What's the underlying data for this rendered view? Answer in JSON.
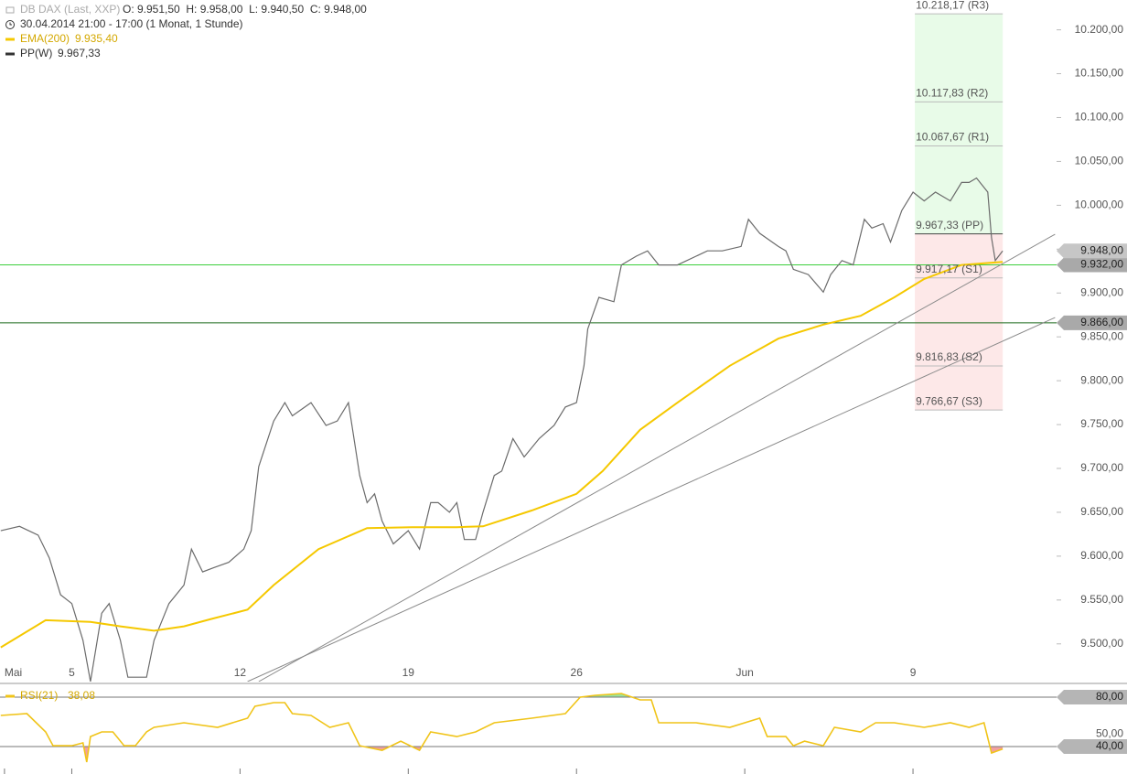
{
  "chart_data": [
    {
      "type": "line",
      "title": "DB DAX (Last, XXP)",
      "ohlc_label": "O: 9.951,50  H: 9.958,00  L: 9.940,50  C: 9.948,00",
      "subtitle": "30.04.2014 21:00 - 17:00 (1 Monat, 1 Stunde)",
      "xlim": [
        -1.2,
        281.4
      ],
      "xticks": [
        {
          "value": 0,
          "label": "Mai"
        },
        {
          "value": 18,
          "label": "5"
        },
        {
          "value": 63,
          "label": "12"
        },
        {
          "value": 108,
          "label": "19"
        },
        {
          "value": 153,
          "label": "26"
        },
        {
          "value": 198,
          "label": "Jun"
        },
        {
          "value": 243,
          "label": "9"
        }
      ],
      "ylim": [
        9457,
        10234
      ],
      "yticks": [
        {
          "value": 9500,
          "label": "9.500,00"
        },
        {
          "value": 9550,
          "label": "9.550,00"
        },
        {
          "value": 9600,
          "label": "9.600,00"
        },
        {
          "value": 9650,
          "label": "9.650,00"
        },
        {
          "value": 9700,
          "label": "9.700,00"
        },
        {
          "value": 9750,
          "label": "9.750,00"
        },
        {
          "value": 9800,
          "label": "9.800,00"
        },
        {
          "value": 9850,
          "label": "9.850,00"
        },
        {
          "value": 9900,
          "label": "9.900,00"
        },
        {
          "value": 9950,
          "label": "9.950,00"
        },
        {
          "value": 10000,
          "label": "10.000,00"
        },
        {
          "value": 10050,
          "label": "10.050,00"
        },
        {
          "value": 10100,
          "label": "10.100,00"
        },
        {
          "value": 10150,
          "label": "10.150,00"
        },
        {
          "value": 10200,
          "label": "10.200,00"
        }
      ],
      "series": [
        {
          "name": "DB DAX (Last, XXP)",
          "color": "#6b6b6b",
          "x": [
            -1,
            4,
            9,
            12,
            15,
            18,
            21,
            23,
            26,
            28,
            31,
            33,
            38,
            40,
            44,
            48,
            50,
            53,
            56,
            60,
            64,
            66,
            68,
            72,
            75,
            77,
            82,
            86,
            89,
            92,
            95,
            97,
            99,
            101,
            104,
            108,
            111,
            114,
            116,
            119,
            121,
            123,
            126,
            128,
            131,
            133,
            136,
            139,
            143,
            147,
            150,
            153,
            155,
            156,
            159,
            163,
            165,
            169,
            172,
            175,
            180,
            185,
            188,
            192,
            197,
            199,
            202,
            207,
            209,
            211,
            215,
            219,
            221,
            224,
            227,
            230,
            232,
            235,
            237,
            240,
            243,
            246,
            249,
            253,
            256,
            258,
            260,
            263,
            264,
            265,
            267
          ],
          "values": [
            9629,
            9634,
            9624,
            9598,
            9556,
            9546,
            9504,
            9457,
            9535,
            9546,
            9504,
            9462,
            9462,
            9504,
            9546,
            9567,
            9608,
            9582,
            9587,
            9593,
            9608,
            9629,
            9702,
            9754,
            9775,
            9760,
            9775,
            9749,
            9754,
            9775,
            9692,
            9661,
            9671,
            9640,
            9614,
            9629,
            9608,
            9661,
            9661,
            9650,
            9661,
            9619,
            9619,
            9650,
            9692,
            9697,
            9734,
            9713,
            9734,
            9749,
            9770,
            9775,
            9817,
            9859,
            9895,
            9890,
            9932,
            9942,
            9948,
            9932,
            9932,
            9942,
            9948,
            9948,
            9953,
            9984,
            9968,
            9953,
            9948,
            9927,
            9921,
            9901,
            9921,
            9937,
            9932,
            9984,
            9974,
            9979,
            9958,
            9994,
            10015,
            10005,
            10015,
            10005,
            10026,
            10026,
            10031,
            10015,
            9963,
            9937,
            9948
          ]
        },
        {
          "name": "EMA(200)",
          "value_label": "9.935,40",
          "color": "#f5c800",
          "x": [
            -1,
            11,
            23,
            31,
            40,
            48,
            55,
            65,
            72,
            84,
            97,
            109,
            121,
            128,
            141,
            153,
            160,
            170,
            180,
            194,
            207,
            219,
            229,
            238,
            246,
            256,
            267
          ],
          "values": [
            9496,
            9527,
            9525,
            9520,
            9515,
            9520,
            9528,
            9539,
            9567,
            9608,
            9632,
            9633,
            9633,
            9634,
            9652,
            9671,
            9697,
            9744,
            9775,
            9817,
            9848,
            9864,
            9874,
            9895,
            9916,
            9932,
            9935.4
          ]
        }
      ],
      "last_price": {
        "value": 9948,
        "label": "9.948,00"
      },
      "hlines": [
        {
          "value": 9932,
          "label": "9.932,00",
          "color": "#3ccf3c"
        },
        {
          "value": 9866,
          "label": "9.866,00",
          "color": "#1c6b1c"
        }
      ],
      "trendlines": [
        {
          "x": [
            68,
            281
          ],
          "values": [
            9457,
            9967
          ]
        },
        {
          "x": [
            65,
            281
          ],
          "values": [
            9457,
            9872
          ]
        }
      ],
      "trendline_color": "#8a8a8a",
      "pivot_name": "PP(W)",
      "pivot_value_label": "9.967,33",
      "pivots": {
        "x": [
          243.5,
          267
        ],
        "upper_color": "#e8fbe8",
        "lower_color": "#fde8e8",
        "levels": [
          {
            "value": 10218.17,
            "label": "10.218,17 (R3)"
          },
          {
            "value": 10117.83,
            "label": "10.117,83 (R2)"
          },
          {
            "value": 10067.67,
            "label": "10.067,67 (R1)"
          },
          {
            "value": 9967.33,
            "label": "9.967,33 (PP)"
          },
          {
            "value": 9917.17,
            "label": "9.917,17 (S1)"
          },
          {
            "value": 9816.83,
            "label": "9.816,83 (S2)"
          },
          {
            "value": 9766.67,
            "label": "9.766,67 (S3)"
          }
        ]
      }
    },
    {
      "type": "line",
      "xlim": [
        -1.2,
        281.4
      ],
      "ylim": [
        17.8,
        90.4
      ],
      "levels": [
        {
          "value": 80,
          "label": "80,00"
        },
        {
          "value": 40,
          "label": "40,00"
        }
      ],
      "yticks": [
        {
          "value": 50,
          "label": "50,00"
        }
      ],
      "high_fill": "#9be39b",
      "low_fill": "#f2a0a0",
      "series": [
        {
          "name": "RSI(21)",
          "value_label": "38,08",
          "color": "#f0c419",
          "x": [
            -1,
            6,
            11,
            13,
            18,
            21,
            22,
            23,
            26,
            29,
            32,
            35,
            38,
            40,
            48,
            57,
            65,
            67,
            72,
            75,
            77,
            82,
            87,
            92,
            95,
            101,
            106,
            111,
            114,
            121,
            126,
            131,
            141,
            150,
            154,
            158,
            165,
            170,
            173,
            175,
            185,
            194,
            202,
            204,
            209,
            211,
            214,
            219,
            222,
            229,
            233,
            238,
            246,
            253,
            258,
            262,
            264,
            267
          ],
          "values": [
            65.2,
            66.7,
            51.9,
            40.7,
            40.7,
            43,
            27.4,
            48.1,
            51.9,
            51.9,
            40.7,
            40.7,
            51.9,
            55.6,
            59.3,
            55.6,
            63,
            72.6,
            75.6,
            75.6,
            66.7,
            65.2,
            55.6,
            59.3,
            40.7,
            37,
            44.4,
            37,
            51.9,
            48.1,
            51.9,
            59.3,
            63,
            66.7,
            80,
            81.5,
            83,
            77.8,
            77.8,
            59.3,
            59.3,
            55.6,
            63,
            48.1,
            48.1,
            40.7,
            44.4,
            40.7,
            55.6,
            51.9,
            59.3,
            59.3,
            55.6,
            59.3,
            55.6,
            59.3,
            34.8,
            38.08
          ]
        }
      ]
    }
  ]
}
